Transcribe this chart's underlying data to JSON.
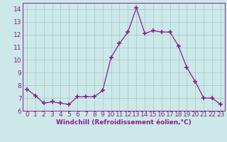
{
  "x": [
    0,
    1,
    2,
    3,
    4,
    5,
    6,
    7,
    8,
    9,
    10,
    11,
    12,
    13,
    14,
    15,
    16,
    17,
    18,
    19,
    20,
    21,
    22,
    23
  ],
  "y": [
    7.7,
    7.2,
    6.6,
    6.7,
    6.6,
    6.5,
    7.1,
    7.1,
    7.1,
    7.6,
    10.2,
    11.3,
    12.2,
    14.1,
    12.1,
    12.3,
    12.2,
    12.2,
    11.1,
    9.4,
    8.3,
    7.0,
    7.0,
    6.5
  ],
  "line_color": "#8b2090",
  "marker": "+",
  "marker_size": 5,
  "marker_linewidth": 1.2,
  "bg_color": "#cce8e8",
  "grid_color": "#aacccc",
  "xlabel": "Windchill (Refroidissement éolien,°C)",
  "ylim": [
    6,
    14.5
  ],
  "xlim": [
    -0.5,
    23.5
  ],
  "yticks": [
    6,
    7,
    8,
    9,
    10,
    11,
    12,
    13,
    14
  ],
  "xticks": [
    0,
    1,
    2,
    3,
    4,
    5,
    6,
    7,
    8,
    9,
    10,
    11,
    12,
    13,
    14,
    15,
    16,
    17,
    18,
    19,
    20,
    21,
    22,
    23
  ],
  "tick_color": "#8b2090",
  "label_fontsize": 6.5,
  "tick_fontsize": 6.5,
  "linewidth": 0.9
}
